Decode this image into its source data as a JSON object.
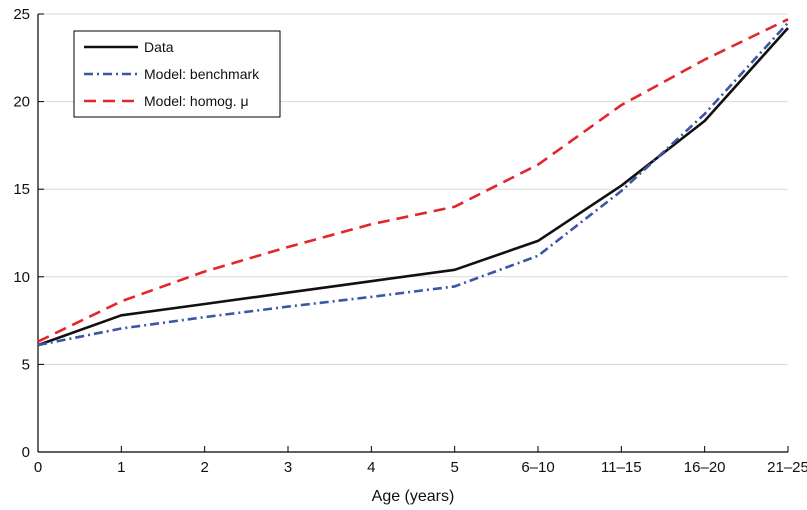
{
  "chart_data": {
    "type": "line",
    "title": "",
    "xlabel": "Age (years)",
    "ylabel": "",
    "categories": [
      "0",
      "1",
      "2",
      "3",
      "4",
      "5",
      "6–10",
      "11–15",
      "16–20",
      "21–25"
    ],
    "ylim": [
      0,
      25
    ],
    "yticks": [
      0,
      5,
      10,
      15,
      20,
      25
    ],
    "grid": "horizontal",
    "legend_position": "top-left",
    "series": [
      {
        "name": "Data",
        "color": "#111111",
        "style": "solid",
        "values": [
          6.1,
          7.8,
          8.45,
          9.1,
          9.75,
          10.4,
          12.05,
          15.2,
          18.9,
          24.2
        ]
      },
      {
        "name": "Model: benchmark",
        "color": "#3a56a6",
        "style": "dashdot",
        "values": [
          6.1,
          7.05,
          7.7,
          8.3,
          8.85,
          9.45,
          11.2,
          14.9,
          19.3,
          24.5
        ]
      },
      {
        "name": "Model: homog. μ",
        "color": "#e3262c",
        "style": "dashed",
        "values": [
          6.3,
          8.6,
          10.3,
          11.7,
          13.0,
          14.0,
          16.4,
          19.8,
          22.4,
          24.7
        ]
      }
    ]
  }
}
